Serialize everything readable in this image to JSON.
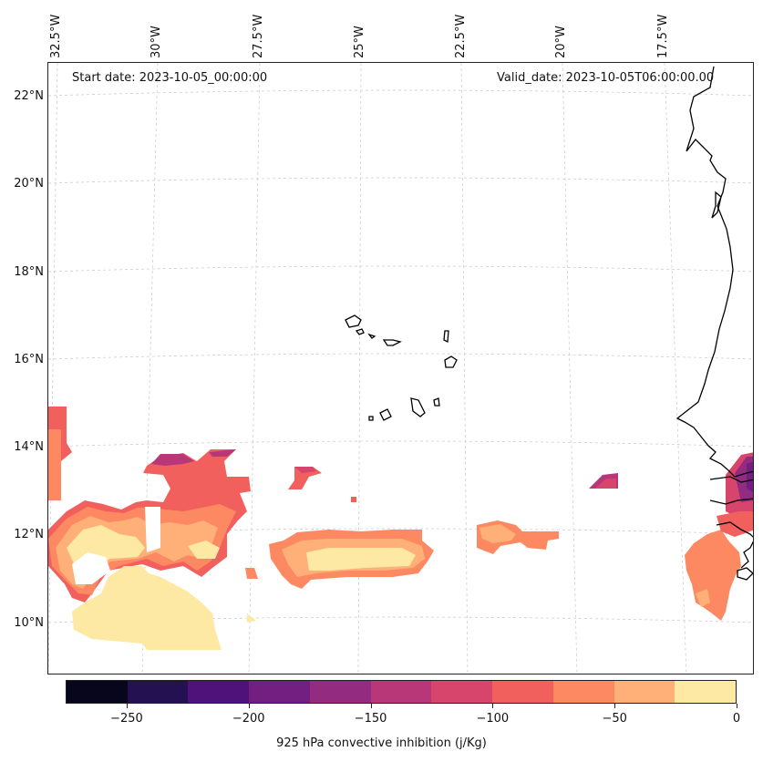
{
  "annotations": {
    "start_date": "Start date: 2023-10-05_00:00:00",
    "valid_date": "Valid_date: 2023-10-05T06:00:00.00"
  },
  "axes": {
    "lat_labels": [
      "22°N",
      "20°N",
      "18°N",
      "16°N",
      "14°N",
      "12°N",
      "10°N"
    ],
    "lon_labels": [
      "32.5°W",
      "30°W",
      "27.5°W",
      "25°W",
      "22.5°W",
      "20°W",
      "17.5°W"
    ],
    "grid": true
  },
  "colorbar": {
    "label": "925 hPa convective inhibition (j/Kg)",
    "ticks": [
      "−250",
      "−200",
      "−150",
      "−100",
      "−50",
      "0"
    ],
    "levels": [
      -275,
      -250,
      -225,
      -200,
      -175,
      -150,
      -125,
      -100,
      -75,
      -50,
      -25,
      0
    ],
    "colors": [
      "#07061c",
      "#231151",
      "#4f127b",
      "#721f81",
      "#932b80",
      "#b73779",
      "#d8456c",
      "#f1605d",
      "#fc8961",
      "#feb078",
      "#fde8a4"
    ]
  },
  "colors": {
    "coastline": "#000000",
    "gridline": "#c8c8c8"
  }
}
